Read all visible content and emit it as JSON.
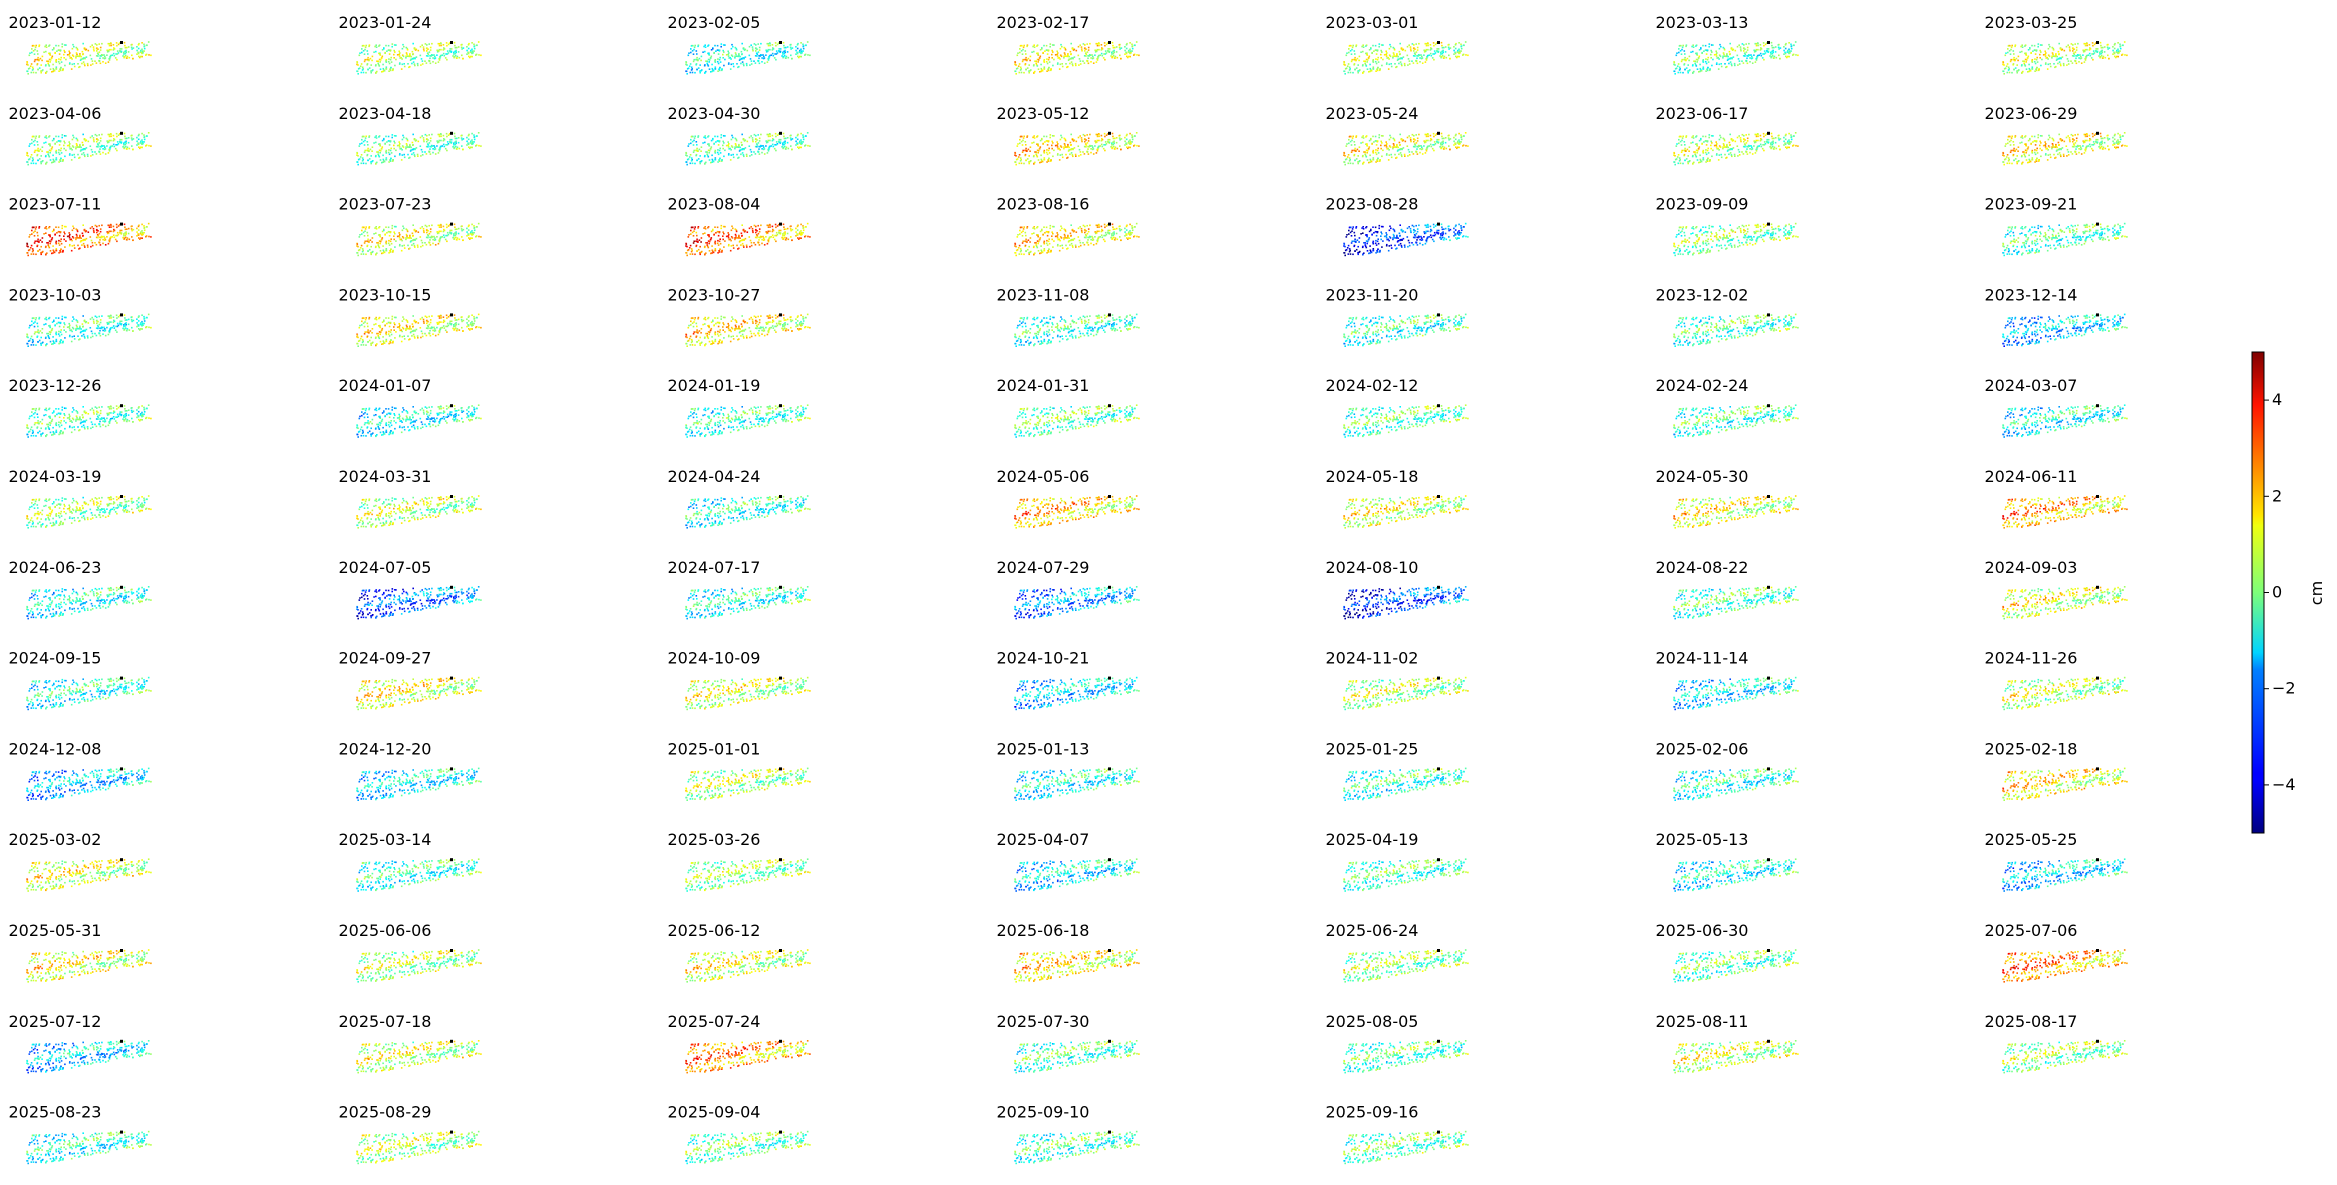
{
  "chart_data": {
    "type": "scatter",
    "layout": {
      "columns": 7,
      "rows": 13
    },
    "colormap": "jet",
    "dates": [
      "2023-01-12",
      "2023-01-24",
      "2023-02-05",
      "2023-02-17",
      "2023-03-01",
      "2023-03-13",
      "2023-03-25",
      "2023-04-06",
      "2023-04-18",
      "2023-04-30",
      "2023-05-12",
      "2023-05-24",
      "2023-06-17",
      "2023-06-29",
      "2023-07-11",
      "2023-07-23",
      "2023-08-04",
      "2023-08-16",
      "2023-08-28",
      "2023-09-09",
      "2023-09-21",
      "2023-10-03",
      "2023-10-15",
      "2023-10-27",
      "2023-11-08",
      "2023-11-20",
      "2023-12-02",
      "2023-12-14",
      "2023-12-26",
      "2024-01-07",
      "2024-01-19",
      "2024-01-31",
      "2024-02-12",
      "2024-02-24",
      "2024-03-07",
      "2024-03-19",
      "2024-03-31",
      "2024-04-24",
      "2024-05-06",
      "2024-05-18",
      "2024-05-30",
      "2024-06-11",
      "2024-06-23",
      "2024-07-05",
      "2024-07-17",
      "2024-07-29",
      "2024-08-10",
      "2024-08-22",
      "2024-09-03",
      "2024-09-15",
      "2024-09-27",
      "2024-10-09",
      "2024-10-21",
      "2024-11-02",
      "2024-11-14",
      "2024-11-26",
      "2024-12-08",
      "2024-12-20",
      "2025-01-01",
      "2025-01-13",
      "2025-01-25",
      "2025-02-06",
      "2025-02-18",
      "2025-03-02",
      "2025-03-14",
      "2025-03-26",
      "2025-04-07",
      "2025-04-19",
      "2025-05-13",
      "2025-05-25",
      "2025-05-31",
      "2025-06-06",
      "2025-06-12",
      "2025-06-18",
      "2025-06-24",
      "2025-06-30",
      "2025-07-06",
      "2025-07-12",
      "2025-07-18",
      "2025-07-24",
      "2025-07-30",
      "2025-08-05",
      "2025-08-11",
      "2025-08-17",
      "2025-08-23",
      "2025-08-29",
      "2025-09-04",
      "2025-09-10",
      "2025-09-16"
    ],
    "panel_mean_cm": [
      0.8,
      0.3,
      -1.0,
      1.0,
      0.4,
      -0.4,
      0.6,
      0.0,
      -0.2,
      -0.5,
      1.5,
      1.0,
      0.5,
      1.2,
      3.0,
      1.0,
      2.8,
      1.5,
      -3.5,
      0.0,
      -0.6,
      -0.8,
      1.2,
      1.5,
      -0.8,
      -0.8,
      -0.5,
      -2.0,
      -0.5,
      -1.2,
      -0.8,
      -0.2,
      -0.4,
      -0.6,
      -1.2,
      0.2,
      0.6,
      -1.0,
      2.0,
      1.0,
      1.2,
      2.2,
      -1.2,
      -3.0,
      -1.0,
      -2.5,
      -3.5,
      -0.6,
      1.0,
      -1.0,
      1.2,
      0.8,
      -1.8,
      0.5,
      -1.5,
      0.6,
      -2.0,
      -1.5,
      0.5,
      -1.2,
      -0.8,
      -1.0,
      1.5,
      1.0,
      -0.8,
      0.2,
      -1.5,
      -0.5,
      -1.2,
      -1.8,
      1.2,
      0.5,
      1.0,
      1.5,
      0.2,
      -0.3,
      2.5,
      -1.8,
      0.8,
      2.5,
      -0.5,
      -0.5,
      0.8,
      0.2,
      -1.0,
      0.5,
      -0.2,
      -0.6,
      -0.2
    ],
    "colorbar": {
      "label": "cm",
      "range": [
        -5,
        5
      ],
      "ticks": [
        -4,
        -2,
        0,
        2,
        4
      ],
      "tick_labels": [
        "−4",
        "−2",
        "0",
        "2",
        "4"
      ]
    }
  }
}
